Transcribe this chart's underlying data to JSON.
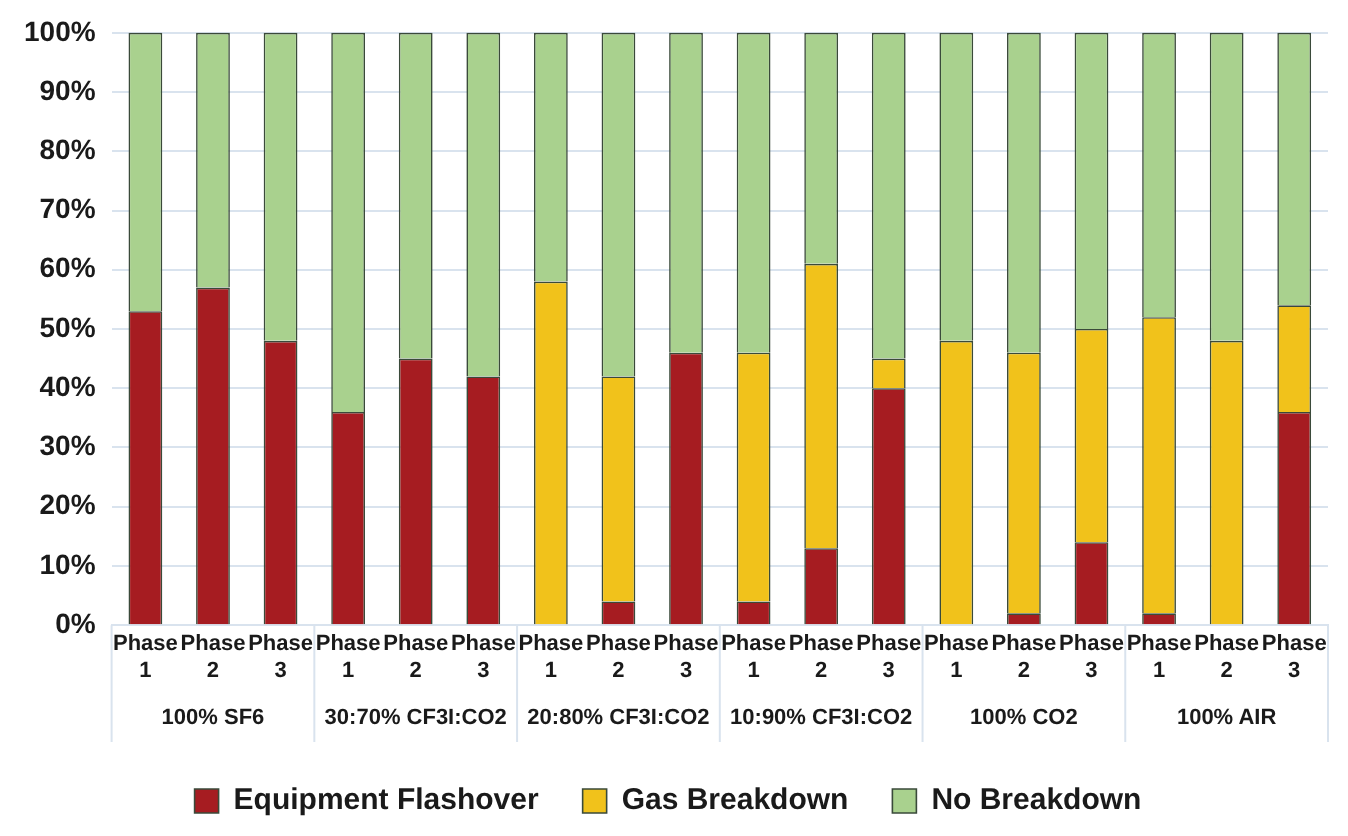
{
  "chart_data": {
    "type": "bar",
    "stacked": true,
    "categories": [
      "Phase 1",
      "Phase 2",
      "Phase 3",
      "Phase 1",
      "Phase 2",
      "Phase 3",
      "Phase 1",
      "Phase 2",
      "Phase 3",
      "Phase 1",
      "Phase 2",
      "Phase 3",
      "Phase 1",
      "Phase 2",
      "Phase 3",
      "Phase 1",
      "Phase 2",
      "Phase 3"
    ],
    "series": [
      {
        "name": "Equipment Flashover",
        "color": "#a61c21",
        "values": [
          53,
          57,
          48,
          36,
          45,
          42,
          0,
          4,
          46,
          4,
          13,
          40,
          0,
          2,
          14,
          2,
          0,
          36
        ]
      },
      {
        "name": "Gas Breakdown",
        "color": "#f1c21b",
        "values": [
          0,
          0,
          0,
          0,
          0,
          0,
          58,
          38,
          0,
          42,
          48,
          5,
          48,
          44,
          36,
          50,
          48,
          18
        ]
      },
      {
        "name": "No Breakdown",
        "color": "#a9d18e",
        "values": [
          47,
          43,
          52,
          64,
          55,
          58,
          42,
          58,
          54,
          54,
          39,
          55,
          52,
          54,
          50,
          48,
          52,
          46
        ]
      }
    ],
    "ylim": [
      0,
      100
    ],
    "yticks": [
      {
        "value": 0,
        "label": "0%"
      },
      {
        "value": 10,
        "label": "10%"
      },
      {
        "value": 20,
        "label": "20%"
      },
      {
        "value": 30,
        "label": "30%"
      },
      {
        "value": 40,
        "label": "40%"
      },
      {
        "value": 50,
        "label": "50%"
      },
      {
        "value": 60,
        "label": "60%"
      },
      {
        "value": 70,
        "label": "70%"
      },
      {
        "value": 80,
        "label": "80%"
      },
      {
        "value": 90,
        "label": "90%"
      },
      {
        "value": 100,
        "label": "100%"
      }
    ],
    "grid": "y",
    "legend": "bottom",
    "annotations": [
      "100% SF6",
      "30:70% CF3I:CO2",
      "20:80% CF3I:CO2",
      "10:90% CF3I:CO2",
      "100% CO2",
      "100% AIR"
    ]
  }
}
